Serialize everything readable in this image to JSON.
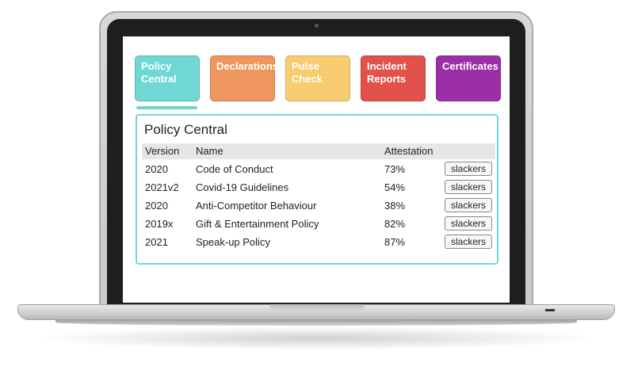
{
  "tabs": [
    {
      "label": "Policy\nCentral",
      "color": "#6fd8d4"
    },
    {
      "label": "Declarations",
      "color": "#ee965e"
    },
    {
      "label": "Pulse\nCheck",
      "color": "#f8cc70"
    },
    {
      "label": "Incident\nReports",
      "color": "#e2514a"
    },
    {
      "label": "Certificates",
      "color": "#9b2fa8"
    }
  ],
  "panel": {
    "title": "Policy Central",
    "columns": {
      "version": "Version",
      "name": "Name",
      "attestation": "Attestation"
    },
    "rows": [
      {
        "version": "2020",
        "name": "Code of Conduct",
        "attestation": "73%",
        "action": "slackers"
      },
      {
        "version": "2021v2",
        "name": "Covid-19 Guidelines",
        "attestation": "54%",
        "action": "slackers"
      },
      {
        "version": "2020",
        "name": "Anti-Competitor Behaviour",
        "attestation": "38%",
        "action": "slackers"
      },
      {
        "version": "2019x",
        "name": "Gift & Entertainment Policy",
        "attestation": "82%",
        "action": "slackers"
      },
      {
        "version": "2021",
        "name": "Speak-up Policy",
        "attestation": "87%",
        "action": "slackers"
      }
    ]
  },
  "colors": {
    "accent": "#6fd8d6",
    "header_bg": "#e6e6e6"
  }
}
